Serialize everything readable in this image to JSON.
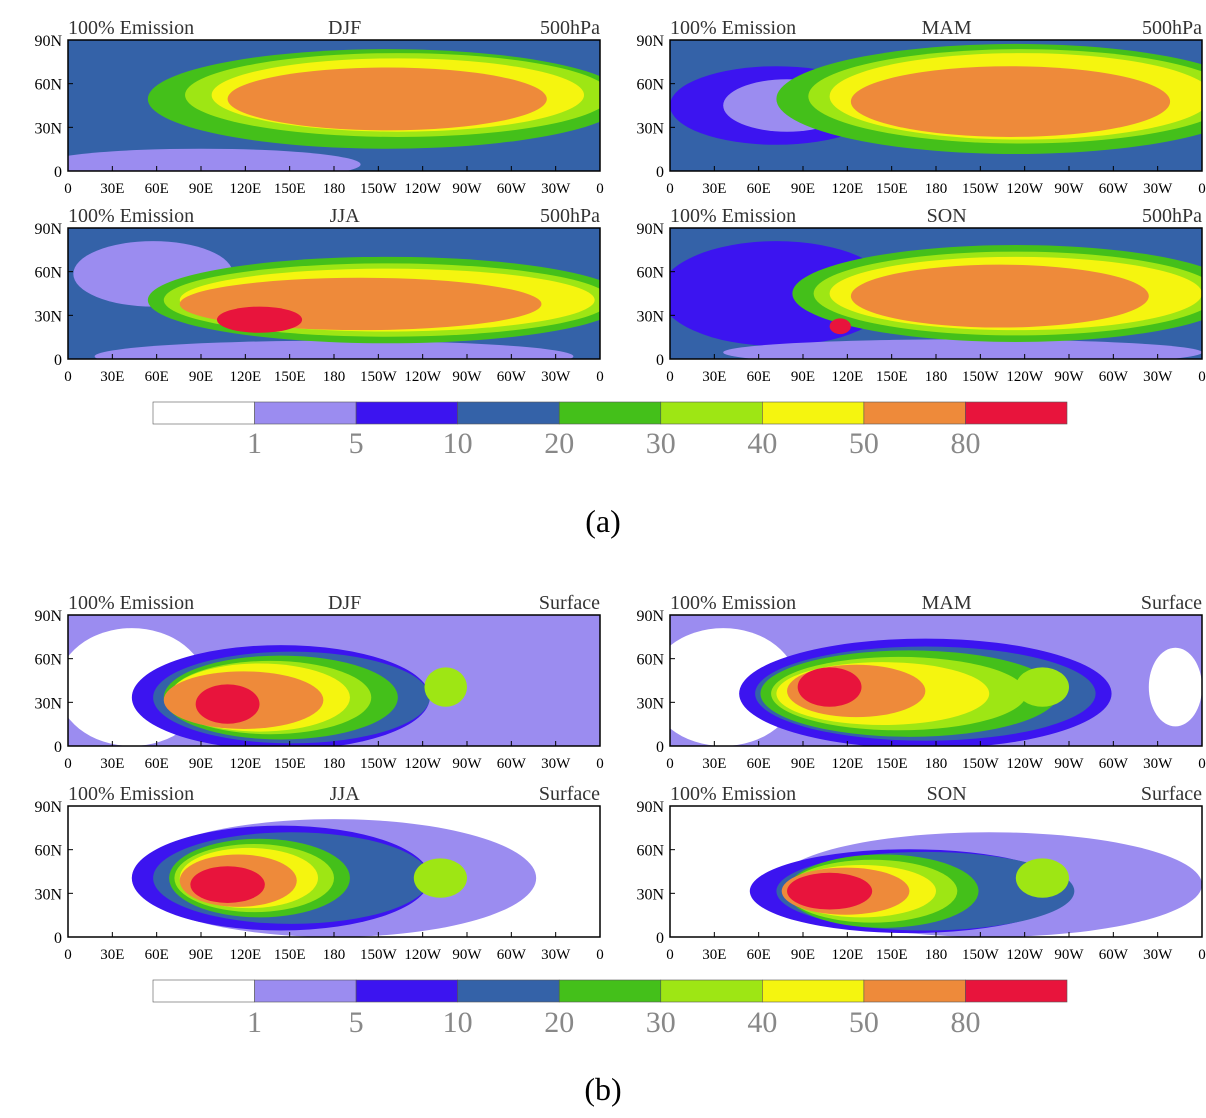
{
  "figures": [
    {
      "caption": "(a)",
      "panels": [
        {
          "left": "100% Emission",
          "center": "DJF",
          "right": "500hPa"
        },
        {
          "left": "100% Emission",
          "center": "MAM",
          "right": "500hPa"
        },
        {
          "left": "100% Emission",
          "center": "JJA",
          "right": "500hPa"
        },
        {
          "left": "100% Emission",
          "center": "SON",
          "right": "500hPa"
        }
      ]
    },
    {
      "caption": "(b)",
      "panels": [
        {
          "left": "100% Emission",
          "center": "DJF",
          "right": "Surface"
        },
        {
          "left": "100% Emission",
          "center": "MAM",
          "right": "Surface"
        },
        {
          "left": "100% Emission",
          "center": "JJA",
          "right": "Surface"
        },
        {
          "left": "100% Emission",
          "center": "SON",
          "right": "Surface"
        }
      ]
    }
  ],
  "axes": {
    "xticks": [
      "0",
      "30E",
      "60E",
      "90E",
      "120E",
      "150E",
      "180",
      "150W",
      "120W",
      "90W",
      "60W",
      "30W",
      "0"
    ],
    "yticks": [
      "0",
      "30N",
      "60N",
      "90N"
    ]
  },
  "colorbar": {
    "colors": [
      "#ffffff",
      "#9b8cf0",
      "#3c14f0",
      "#3462a8",
      "#44c01a",
      "#9ee614",
      "#f5f50f",
      "#ee8a3a",
      "#e8143c"
    ],
    "labels": [
      "1",
      "5",
      "10",
      "20",
      "30",
      "40",
      "50",
      "80"
    ]
  }
}
